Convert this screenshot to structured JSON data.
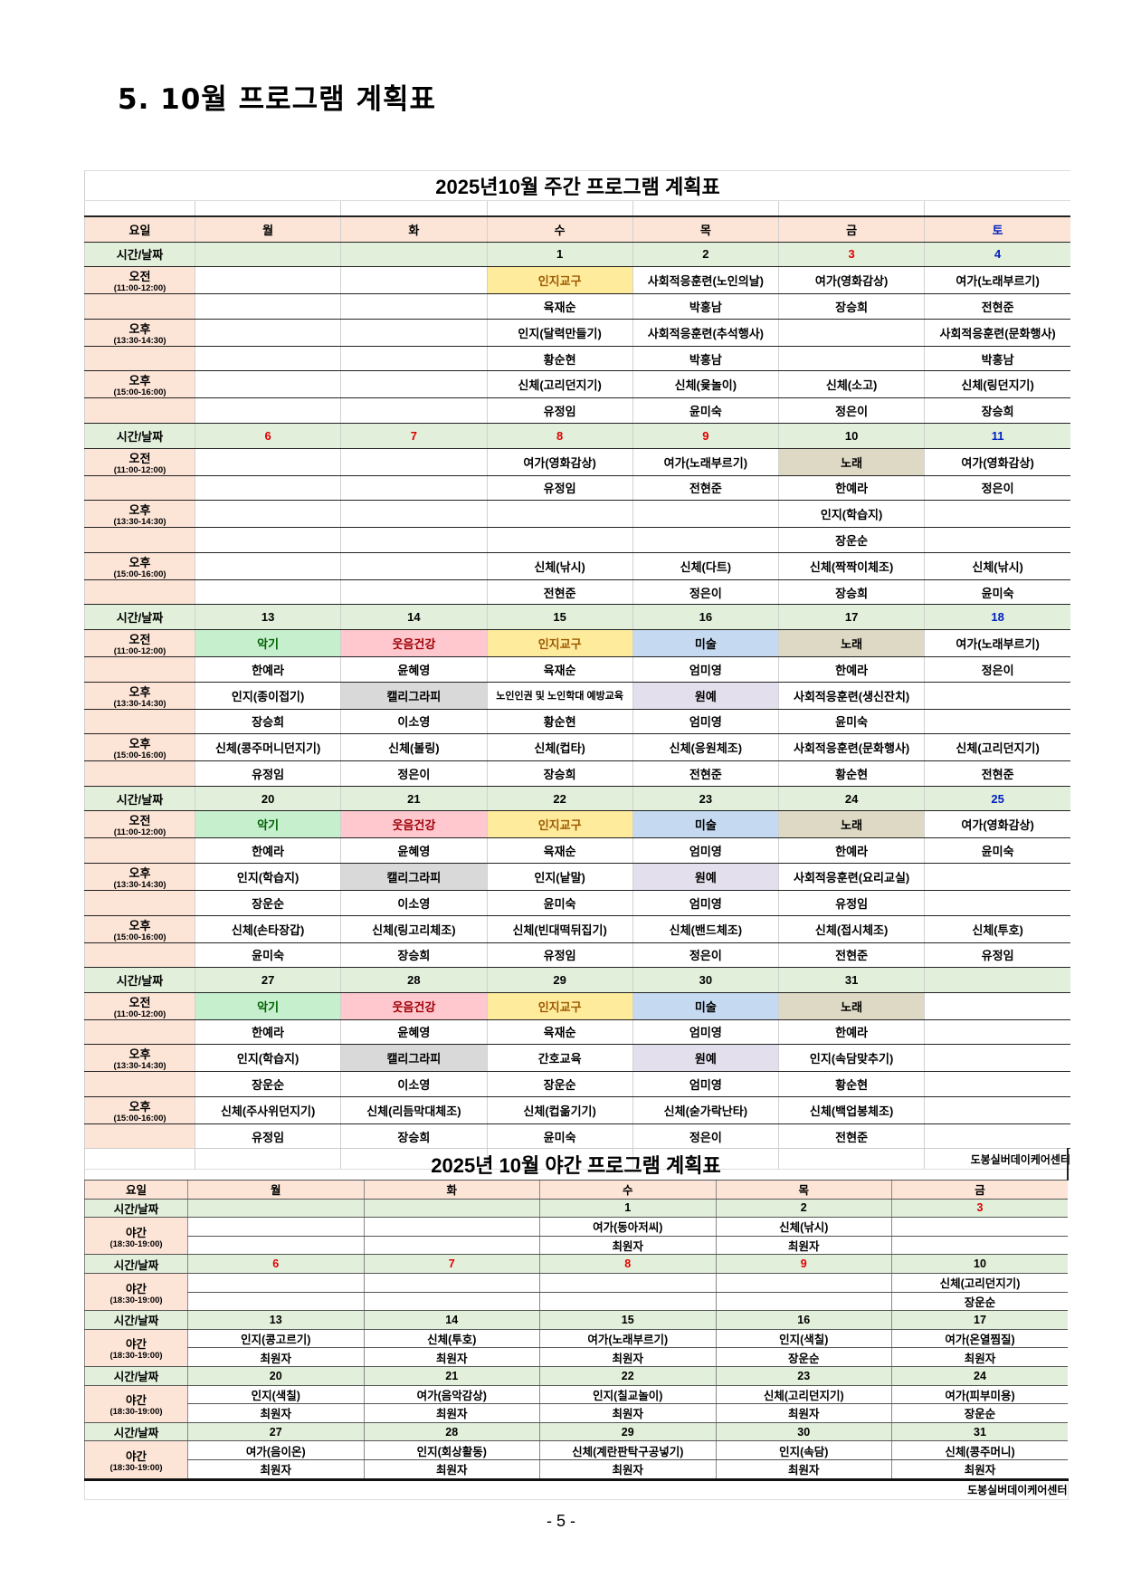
{
  "doc_title": "5. 10월 프로그램 계획표",
  "page_number": "- 5 -",
  "highlights": {
    "악기": {
      "bg": "#c6efce",
      "fg": "#006100"
    },
    "웃음건강": {
      "bg": "#ffc7ce",
      "fg": "#9c0006"
    },
    "인지교구": {
      "bg": "#ffeb9c",
      "fg": "#9c5700"
    },
    "미술": {
      "bg": "#c5d9f1",
      "fg": "#000000"
    },
    "노래": {
      "bg": "#ddd9c4",
      "fg": "#000000"
    },
    "캘리그라피": {
      "bg": "#d9d9d9",
      "fg": "#000000"
    },
    "원예": {
      "bg": "#e4dfec",
      "fg": "#000000"
    }
  },
  "date_colors": {
    "red": "#e00000",
    "blue": "#0020c0",
    "black": "#000000"
  },
  "weekly": {
    "title": "2025년10월 주간 프로그램 계획표",
    "dow_label": "요일",
    "days": [
      "월",
      "화",
      "수",
      "목",
      "금",
      "토"
    ],
    "day_colors": [
      "black",
      "black",
      "black",
      "black",
      "black",
      "blue"
    ],
    "date_label": "시간/날짜",
    "slots": [
      {
        "name": "오전",
        "time": "(11:00-12:00)"
      },
      {
        "name": "오후",
        "time": "(13:30-14:30)"
      },
      {
        "name": "오후",
        "time": "(15:00-16:00)"
      }
    ],
    "footer": "도봉실버데이케어센터",
    "weeks": [
      {
        "dates": [
          "",
          "",
          "1",
          "2",
          "3",
          "4"
        ],
        "colors": [
          "black",
          "black",
          "black",
          "black",
          "red",
          "blue"
        ],
        "rows": [
          {
            "programs": [
              "",
              "",
              "인지교구",
              "사회적응훈련(노인의날)",
              "여가(영화감상)",
              "여가(노래부르기)"
            ],
            "staff": [
              "",
              "",
              "육재순",
              "박홍남",
              "장승희",
              "전현준"
            ]
          },
          {
            "programs": [
              "",
              "",
              "인지(달력만들기)",
              "사회적응훈련(추석행사)",
              "",
              "사회적응훈련(문화행사)"
            ],
            "staff": [
              "",
              "",
              "황순현",
              "박홍남",
              "",
              "박홍남"
            ]
          },
          {
            "programs": [
              "",
              "",
              "신체(고리던지기)",
              "신체(윷놀이)",
              "신체(소고)",
              "신체(링던지기)"
            ],
            "staff": [
              "",
              "",
              "유정임",
              "윤미숙",
              "정은이",
              "장승희"
            ]
          }
        ]
      },
      {
        "dates": [
          "6",
          "7",
          "8",
          "9",
          "10",
          "11"
        ],
        "colors": [
          "red",
          "red",
          "red",
          "red",
          "black",
          "blue"
        ],
        "rows": [
          {
            "programs": [
              "",
              "",
              "여가(영화감상)",
              "여가(노래부르기)",
              "노래",
              "여가(영화감상)"
            ],
            "staff": [
              "",
              "",
              "유정임",
              "전현준",
              "한예라",
              "정은이"
            ]
          },
          {
            "programs": [
              "",
              "",
              "",
              "",
              "인지(학습지)",
              ""
            ],
            "staff": [
              "",
              "",
              "",
              "",
              "장운순",
              ""
            ]
          },
          {
            "programs": [
              "",
              "",
              "신체(낚시)",
              "신체(다트)",
              "신체(짝짝이체조)",
              "신체(낚시)"
            ],
            "staff": [
              "",
              "",
              "전현준",
              "정은이",
              "장승희",
              "윤미숙"
            ]
          }
        ]
      },
      {
        "dates": [
          "13",
          "14",
          "15",
          "16",
          "17",
          "18"
        ],
        "colors": [
          "black",
          "black",
          "black",
          "black",
          "black",
          "blue"
        ],
        "rows": [
          {
            "programs": [
              "악기",
              "웃음건강",
              "인지교구",
              "미술",
              "노래",
              "여가(노래부르기)"
            ],
            "staff": [
              "한예라",
              "윤혜영",
              "육재순",
              "엄미영",
              "한예라",
              "정은이"
            ]
          },
          {
            "programs": [
              "인지(종이접기)",
              "캘리그라피",
              "노인인권 및 노인학대 예방교육",
              "원예",
              "사회적응훈련(생신잔치)",
              ""
            ],
            "staff": [
              "장승희",
              "이소영",
              "황순현",
              "엄미영",
              "윤미숙",
              ""
            ]
          },
          {
            "programs": [
              "신체(콩주머니던지기)",
              "신체(볼링)",
              "신체(컵타)",
              "신체(응원체조)",
              "사회적응훈련(문화행사)",
              "신체(고리던지기)"
            ],
            "staff": [
              "유정임",
              "정은이",
              "장승희",
              "전현준",
              "황순현",
              "전현준"
            ]
          }
        ]
      },
      {
        "dates": [
          "20",
          "21",
          "22",
          "23",
          "24",
          "25"
        ],
        "colors": [
          "black",
          "black",
          "black",
          "black",
          "black",
          "blue"
        ],
        "rows": [
          {
            "programs": [
              "악기",
              "웃음건강",
              "인지교구",
              "미술",
              "노래",
              "여가(영화감상)"
            ],
            "staff": [
              "한예라",
              "윤혜영",
              "육재순",
              "엄미영",
              "한예라",
              "윤미숙"
            ]
          },
          {
            "programs": [
              "인지(학습지)",
              "캘리그라피",
              "인지(낱말)",
              "원예",
              "사회적응훈련(요리교실)",
              ""
            ],
            "staff": [
              "장운순",
              "이소영",
              "윤미숙",
              "엄미영",
              "유정임",
              ""
            ]
          },
          {
            "programs": [
              "신체(손타장갑)",
              "신체(링고리체조)",
              "신체(빈대떡뒤집기)",
              "신체(밴드체조)",
              "신체(접시체조)",
              "신체(투호)"
            ],
            "staff": [
              "윤미숙",
              "장승희",
              "유정임",
              "정은이",
              "전현준",
              "유정임"
            ]
          }
        ]
      },
      {
        "dates": [
          "27",
          "28",
          "29",
          "30",
          "31",
          ""
        ],
        "colors": [
          "black",
          "black",
          "black",
          "black",
          "black",
          "black"
        ],
        "rows": [
          {
            "programs": [
              "악기",
              "웃음건강",
              "인지교구",
              "미술",
              "노래",
              ""
            ],
            "staff": [
              "한예라",
              "윤혜영",
              "육재순",
              "엄미영",
              "한예라",
              ""
            ]
          },
          {
            "programs": [
              "인지(학습지)",
              "캘리그라피",
              "간호교육",
              "원예",
              "인지(속담맞추기)",
              ""
            ],
            "staff": [
              "장운순",
              "이소영",
              "장운순",
              "엄미영",
              "황순현",
              ""
            ]
          },
          {
            "programs": [
              "신체(주사위던지기)",
              "신체(리듬막대체조)",
              "신체(컵옮기기)",
              "신체(숟가락난타)",
              "신체(백업봉체조)",
              ""
            ],
            "staff": [
              "유정임",
              "장승희",
              "윤미숙",
              "정은이",
              "전현준",
              ""
            ]
          }
        ]
      }
    ]
  },
  "night": {
    "title": "2025년 10월 야간 프로그램 계획표",
    "dow_label": "요일",
    "days": [
      "월",
      "화",
      "수",
      "목",
      "금"
    ],
    "date_label": "시간/날짜",
    "slot": {
      "name": "야간",
      "time": "(18:30-19:00)"
    },
    "footer": "도봉실버데이케어센터",
    "weeks": [
      {
        "dates": [
          "",
          "",
          "1",
          "2",
          "3"
        ],
        "colors": [
          "black",
          "black",
          "black",
          "black",
          "red"
        ],
        "programs": [
          "",
          "",
          "여가(동아저씨)",
          "신체(낚시)",
          ""
        ],
        "staff": [
          "",
          "",
          "최원자",
          "최원자",
          ""
        ]
      },
      {
        "dates": [
          "6",
          "7",
          "8",
          "9",
          "10"
        ],
        "colors": [
          "red",
          "red",
          "red",
          "red",
          "black"
        ],
        "programs": [
          "",
          "",
          "",
          "",
          "신체(고리던지기)"
        ],
        "staff": [
          "",
          "",
          "",
          "",
          "장운순"
        ]
      },
      {
        "dates": [
          "13",
          "14",
          "15",
          "16",
          "17"
        ],
        "colors": [
          "black",
          "black",
          "black",
          "black",
          "black"
        ],
        "programs": [
          "인지(콩고르기)",
          "신체(투호)",
          "여가(노래부르기)",
          "인지(색칠)",
          "여가(온열찜질)"
        ],
        "staff": [
          "최원자",
          "최원자",
          "최원자",
          "장운순",
          "최원자"
        ]
      },
      {
        "dates": [
          "20",
          "21",
          "22",
          "23",
          "24"
        ],
        "colors": [
          "black",
          "black",
          "black",
          "black",
          "black"
        ],
        "programs": [
          "인지(색칠)",
          "여가(음악감상)",
          "인지(칠교놀이)",
          "신체(고리던지기)",
          "여가(피부미용)"
        ],
        "staff": [
          "최원자",
          "최원자",
          "최원자",
          "최원자",
          "장운순"
        ]
      },
      {
        "dates": [
          "27",
          "28",
          "29",
          "30",
          "31"
        ],
        "colors": [
          "black",
          "black",
          "black",
          "black",
          "black"
        ],
        "programs": [
          "여가(음이온)",
          "인지(회상활동)",
          "신체(계란판탁구공넣기)",
          "인지(속담)",
          "신체(콩주머니)"
        ],
        "staff": [
          "최원자",
          "최원자",
          "최원자",
          "최원자",
          "최원자"
        ]
      }
    ]
  }
}
